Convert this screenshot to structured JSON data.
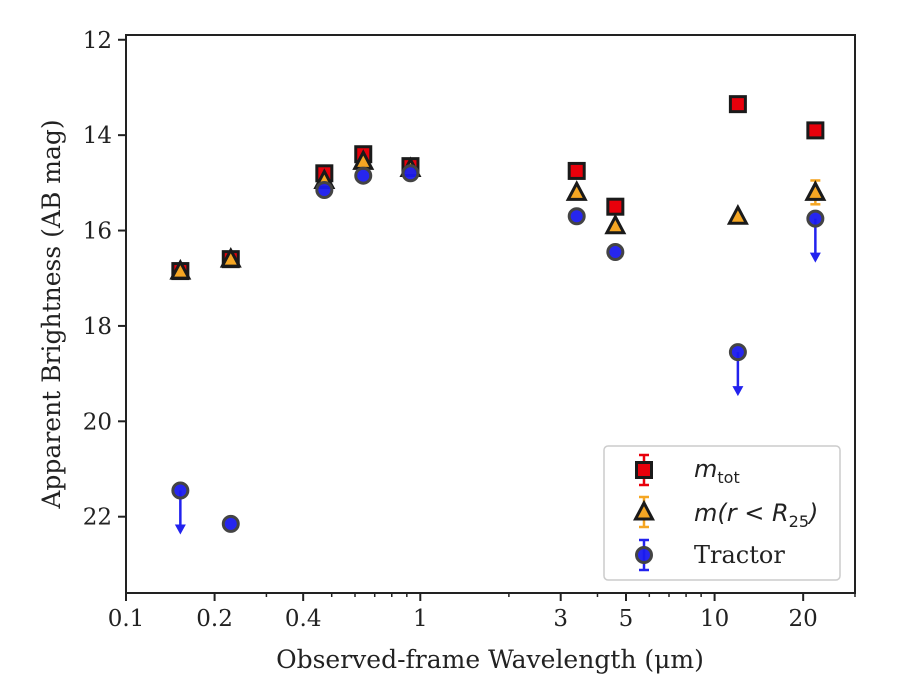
{
  "chart_data": {
    "type": "scatter",
    "xlabel": "Observed-frame Wavelength (μm)",
    "ylabel": "Apparent Brightness (AB mag)",
    "xscale": "log",
    "xlim": [
      0.1,
      30
    ],
    "ylim": [
      23.6,
      11.9
    ],
    "y_inverted": true,
    "x_ticks": [
      0.1,
      0.2,
      0.4,
      1,
      3,
      5,
      10,
      20
    ],
    "x_tick_labels": [
      "0.1",
      "0.2",
      "0.4",
      "1",
      "3",
      "5",
      "10",
      "20"
    ],
    "y_ticks": [
      12,
      14,
      16,
      18,
      20,
      22
    ],
    "y_tick_labels": [
      "12",
      "14",
      "16",
      "18",
      "20",
      "22"
    ],
    "grid": false,
    "legend_position": "lower-right",
    "series": [
      {
        "key": "mtot",
        "marker": "square",
        "color": "#e8000b",
        "errcolor": "#e8000b",
        "points": [
          {
            "x": 0.153,
            "y": 16.85
          },
          {
            "x": 0.227,
            "y": 16.6
          },
          {
            "x": 0.472,
            "y": 14.8
          },
          {
            "x": 0.64,
            "y": 14.4
          },
          {
            "x": 0.926,
            "y": 14.65
          },
          {
            "x": 3.4,
            "y": 14.75
          },
          {
            "x": 4.6,
            "y": 15.5
          },
          {
            "x": 12.0,
            "y": 13.35
          },
          {
            "x": 22.0,
            "y": 13.9
          }
        ]
      },
      {
        "key": "m_r25",
        "marker": "triangle",
        "color": "#f5a623",
        "errcolor": "#f5a623",
        "points": [
          {
            "x": 0.153,
            "y": 16.85
          },
          {
            "x": 0.227,
            "y": 16.6
          },
          {
            "x": 0.472,
            "y": 14.95
          },
          {
            "x": 0.64,
            "y": 14.55
          },
          {
            "x": 0.926,
            "y": 14.7
          },
          {
            "x": 3.4,
            "y": 15.2
          },
          {
            "x": 4.6,
            "y": 15.9
          },
          {
            "x": 12.0,
            "y": 15.7
          },
          {
            "x": 22.0,
            "y": 15.2,
            "err": 0.25
          }
        ]
      },
      {
        "key": "tractor",
        "name": "Tractor",
        "marker": "circle",
        "color": "#1a1aee",
        "errcolor": "#2222ee",
        "points": [
          {
            "x": 0.153,
            "y": 21.45,
            "upper_limit": true
          },
          {
            "x": 0.227,
            "y": 22.15
          },
          {
            "x": 0.472,
            "y": 15.15
          },
          {
            "x": 0.64,
            "y": 14.85
          },
          {
            "x": 0.926,
            "y": 14.8
          },
          {
            "x": 3.4,
            "y": 15.7
          },
          {
            "x": 4.6,
            "y": 16.45
          },
          {
            "x": 12.0,
            "y": 18.55,
            "upper_limit": true
          },
          {
            "x": 22.0,
            "y": 15.75,
            "upper_limit": true
          }
        ]
      }
    ],
    "legend": [
      {
        "key": "mtot",
        "label_main": "m",
        "label_sub": "tot",
        "label_rest": ""
      },
      {
        "key": "m_r25",
        "label_main": "m(r < R",
        "label_sub": "25",
        "label_rest": ")"
      },
      {
        "key": "tractor",
        "label_main": "Tractor",
        "label_sub": "",
        "label_rest": ""
      }
    ]
  }
}
